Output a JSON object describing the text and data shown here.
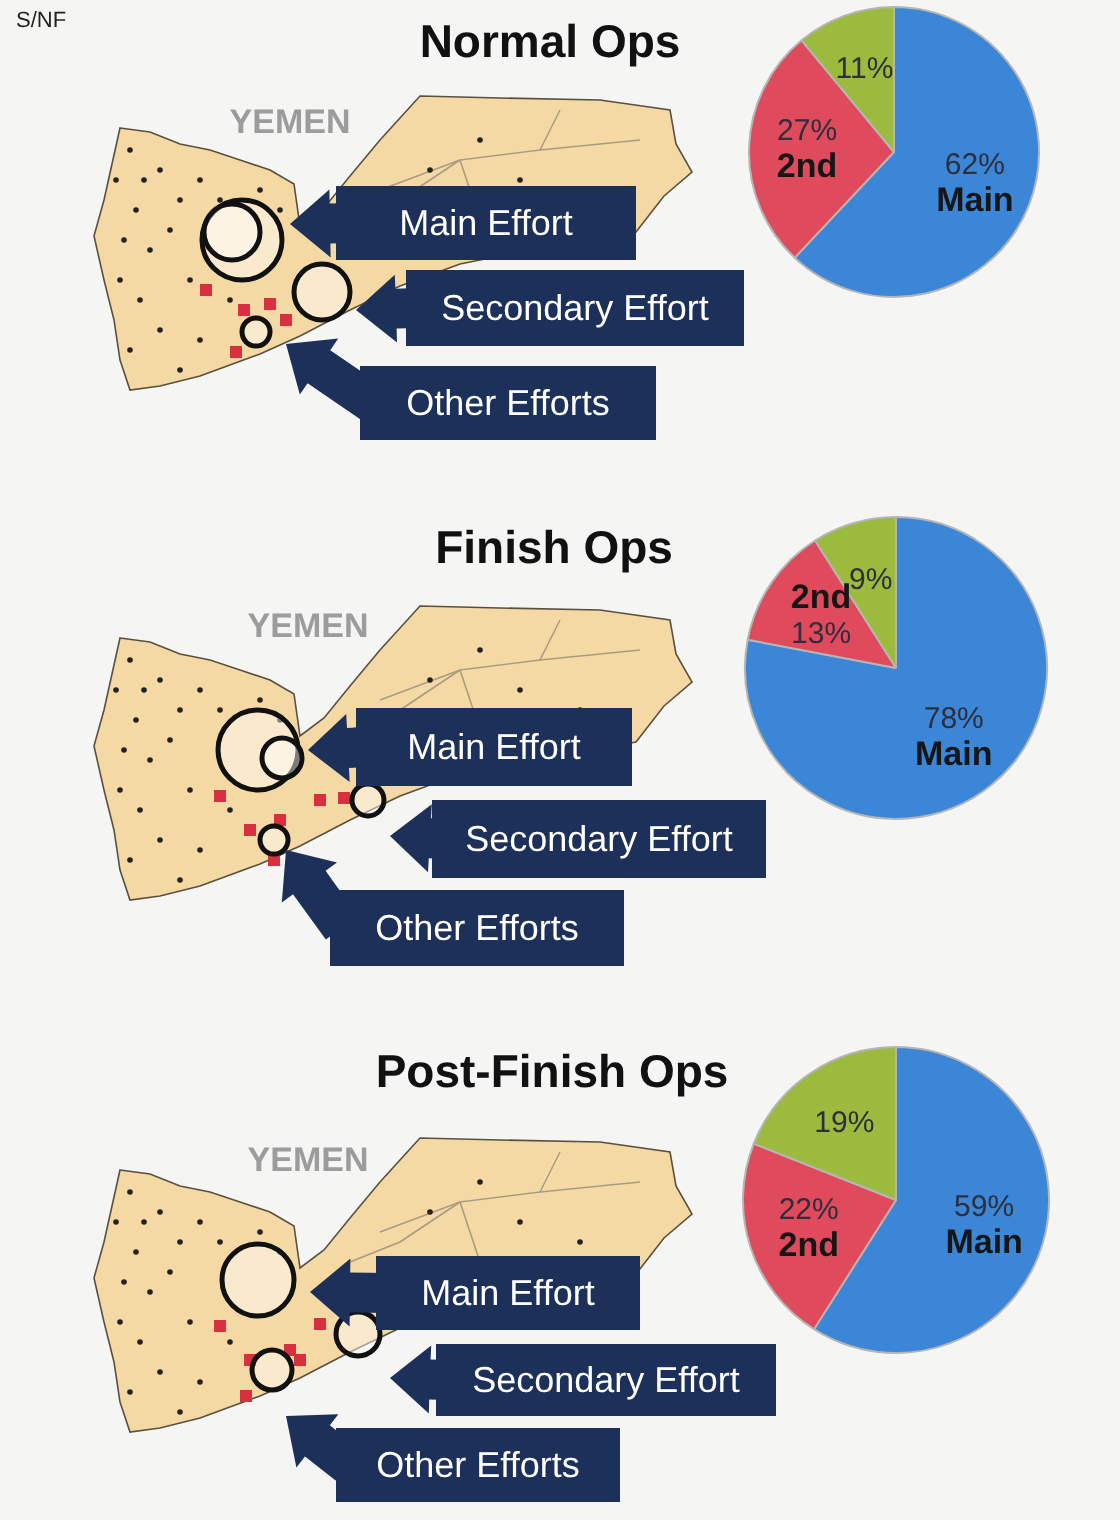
{
  "chart_data": [
    {
      "type": "pie",
      "title": "Normal Ops",
      "categories": [
        "Main",
        "2nd",
        null
      ],
      "values": [
        62,
        27,
        11
      ],
      "colors": [
        "#3b86d6",
        "#df4a5c",
        "#9cba3d"
      ],
      "value_labels": [
        "62%",
        "27%",
        "11%"
      ],
      "annotations": [
        "YEMEN",
        "Main Effort",
        "Secondary Effort",
        "Other Efforts",
        "S/NF"
      ]
    },
    {
      "type": "pie",
      "title": "Finish Ops",
      "categories": [
        "Main",
        "2nd",
        null
      ],
      "values": [
        78,
        13,
        9
      ],
      "colors": [
        "#3b86d6",
        "#df4a5c",
        "#9cba3d"
      ],
      "value_labels": [
        "78%",
        "13%",
        "9%"
      ],
      "annotations": [
        "YEMEN",
        "Main Effort",
        "Secondary Effort",
        "Other Efforts"
      ]
    },
    {
      "type": "pie",
      "title": "Post-Finish Ops",
      "categories": [
        "Main",
        "2nd",
        null
      ],
      "values": [
        59,
        22,
        19
      ],
      "colors": [
        "#3b86d6",
        "#df4a5c",
        "#9cba3d"
      ],
      "value_labels": [
        "59%",
        "22%",
        "19%"
      ],
      "annotations": [
        "YEMEN",
        "Main Effort",
        "Secondary Effort",
        "Other Efforts"
      ]
    }
  ]
}
